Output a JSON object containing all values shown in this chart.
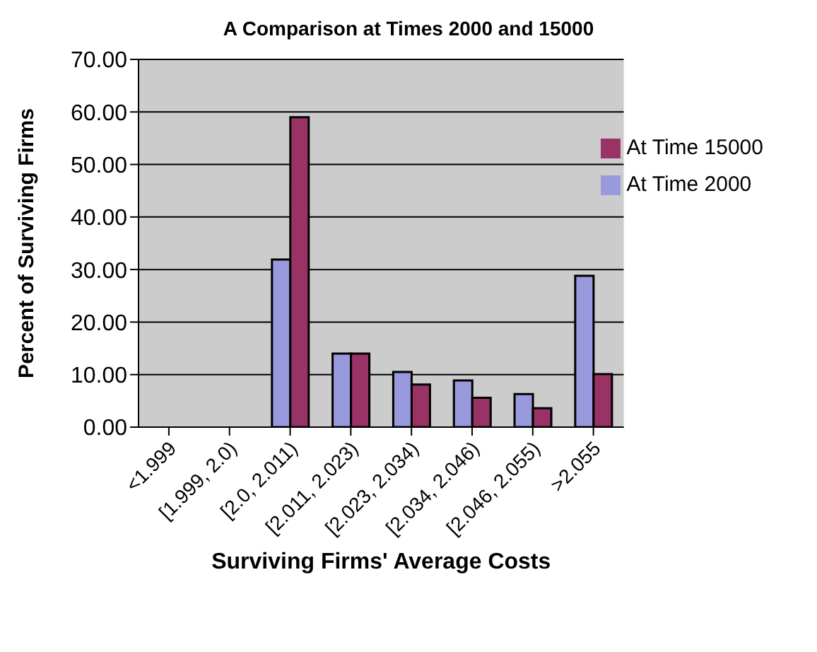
{
  "chart_data": {
    "type": "bar",
    "title": "A Comparison at Times 2000 and 15000",
    "xlabel": "Surviving Firms' Average Costs",
    "ylabel": "Percent of Surviving Firms",
    "categories": [
      "<1.999",
      "[1.999, 2.0)",
      "[2.0, 2.011)",
      "[2.011, 2.023)",
      "[2.023, 2.034)",
      "[2.034, 2.046)",
      "[2.046, 2.055)",
      ">2.055"
    ],
    "series": [
      {
        "name": "At Time 2000",
        "color": "#9999dd",
        "values": [
          0,
          0,
          31.9,
          14.0,
          10.5,
          8.9,
          6.3,
          28.8
        ]
      },
      {
        "name": "At Time 15000",
        "color": "#993366",
        "values": [
          0,
          0,
          59.0,
          14.0,
          8.1,
          5.6,
          3.6,
          10.1
        ]
      }
    ],
    "ylim": [
      0,
      70
    ],
    "yticks": [
      {
        "value": 0,
        "label": "0.00"
      },
      {
        "value": 10,
        "label": "10.00"
      },
      {
        "value": 20,
        "label": "20.00"
      },
      {
        "value": 30,
        "label": "30.00"
      },
      {
        "value": 40,
        "label": "40.00"
      },
      {
        "value": 50,
        "label": "50.00"
      },
      {
        "value": 60,
        "label": "60.00"
      },
      {
        "value": 70,
        "label": "70.00"
      }
    ],
    "grid": "y",
    "legend": "top right"
  }
}
